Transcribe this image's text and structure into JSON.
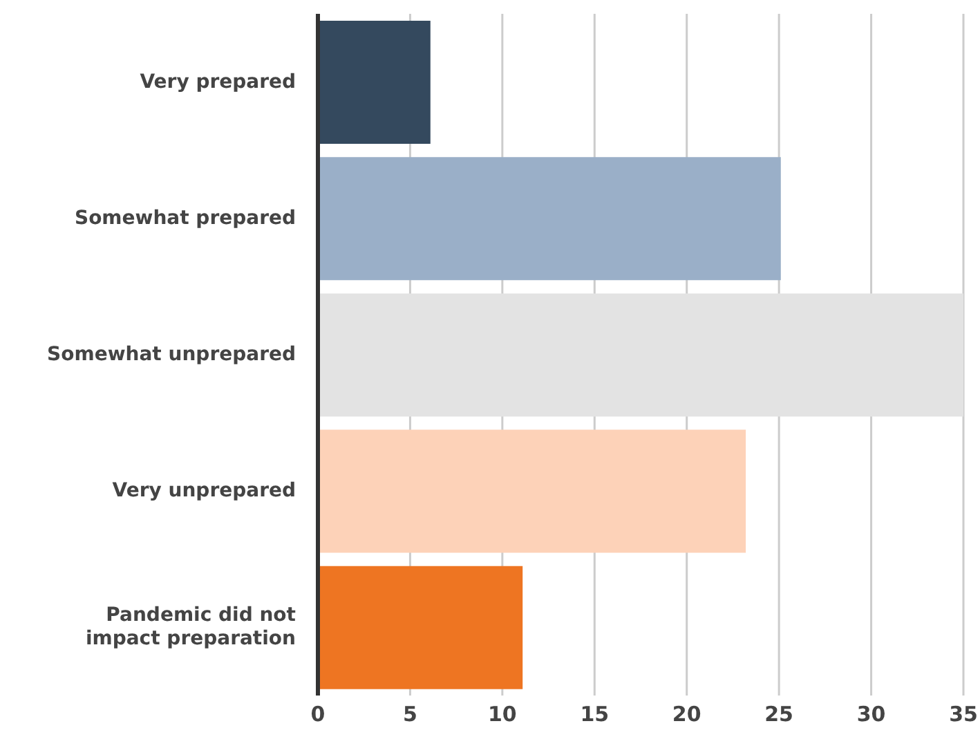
{
  "chart_data": {
    "type": "bar",
    "orientation": "horizontal",
    "categories": [
      "Very prepared",
      "Somewhat prepared",
      "Somewhat unprepared",
      "Very unprepared",
      "Pandemic did not impact preparation"
    ],
    "values": [
      6.1,
      25.1,
      35,
      23.2,
      11.1
    ],
    "colors": [
      "#34495e",
      "#9aafc8",
      "#e3e3e3",
      "#fdd2b8",
      "#ee7522"
    ],
    "xlim": [
      0,
      35
    ],
    "xticks": [
      0,
      5,
      10,
      15,
      20,
      25,
      30,
      35
    ],
    "grid": "x"
  }
}
